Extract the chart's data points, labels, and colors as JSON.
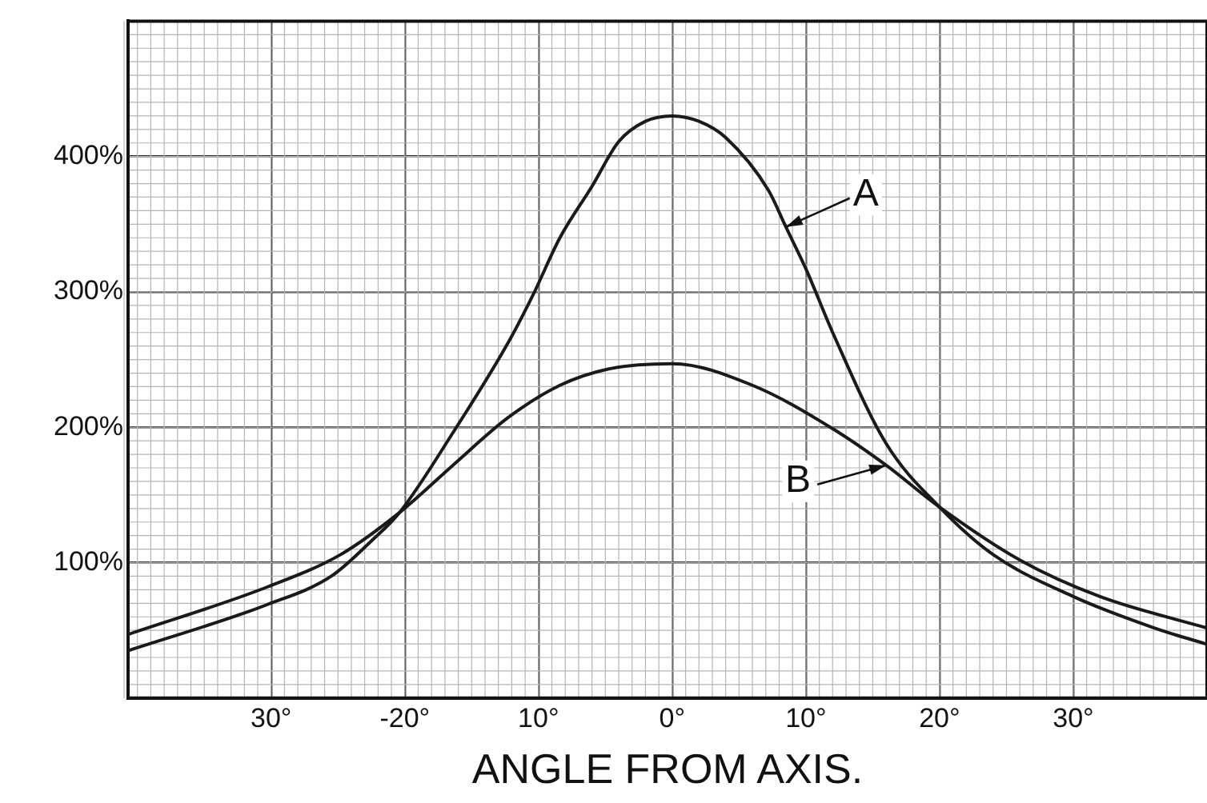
{
  "chart_data": {
    "type": "line",
    "xlabel": "ANGLE FROM AXIS.",
    "xlim": [
      -40.7,
      40
    ],
    "ylim": [
      0,
      500
    ],
    "xticks": [
      {
        "value": -30,
        "label": "30°"
      },
      {
        "value": -20,
        "label": "-20°"
      },
      {
        "value": -10,
        "label": "10°"
      },
      {
        "value": 0,
        "label": "0°"
      },
      {
        "value": 10,
        "label": "10°"
      },
      {
        "value": 20,
        "label": "20°"
      },
      {
        "value": 30,
        "label": "30°"
      }
    ],
    "yticks": [
      {
        "value": 100,
        "label": "100%"
      },
      {
        "value": 200,
        "label": "200%"
      },
      {
        "value": 300,
        "label": "300%"
      },
      {
        "value": 400,
        "label": "400%"
      }
    ],
    "grid": true,
    "legend": false,
    "marker": "none",
    "line_style": "solid",
    "series": [
      {
        "color": "#1a1a1a",
        "x": [
          -40.7,
          -30.3,
          -25.5,
          -22.4,
          -20.4,
          -16.4,
          -12.3,
          -10.4,
          -8.4,
          -6,
          -4,
          -2,
          0,
          2,
          4,
          7.2,
          8.5,
          10,
          12,
          16,
          20,
          24,
          30,
          36,
          39.9
        ],
        "values": [
          35,
          69,
          90,
          117,
          137,
          196,
          262,
          298,
          340,
          378,
          411,
          426,
          430,
          426,
          414,
          375,
          348,
          317,
          270,
          188,
          141,
          106,
          75,
          52,
          40
        ]
      },
      {
        "color": "#1a1a1a",
        "x": [
          -40.7,
          -30.3,
          -24.8,
          -20.4,
          -16.4,
          -12.3,
          -8.4,
          -4.8,
          0,
          6,
          12,
          16,
          20,
          26,
          32,
          39.9
        ],
        "values": [
          47,
          82,
          106,
          137,
          172,
          207,
          231,
          243,
          247,
          231,
          199,
          172,
          141,
          102,
          75,
          52
        ]
      }
    ],
    "annotations": [
      {
        "text": "A",
        "x": 8.5,
        "y": 348
      },
      {
        "text": "B",
        "x": 16,
        "y": 172
      }
    ]
  }
}
